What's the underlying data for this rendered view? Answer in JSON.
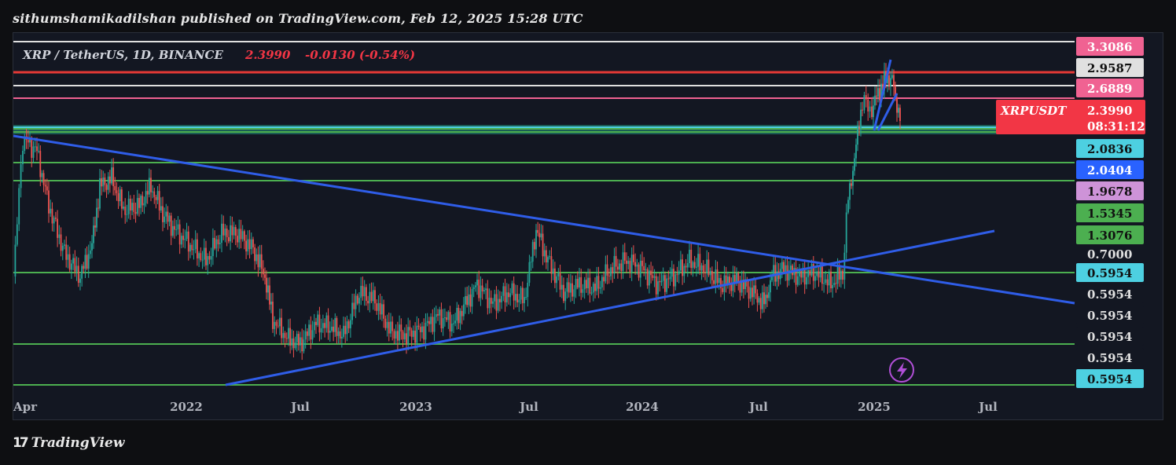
{
  "header": {
    "text": "sithumshamikadilshan published on TradingView.com, Feb 12, 2025 15:28 UTC"
  },
  "footer": {
    "brand": "TradingView",
    "logo_text": "17"
  },
  "legend": {
    "symbol": "XRP / TetherUS, 1D, BINANCE",
    "price": "2.3990",
    "change": "-0.0130 (-0.54%)",
    "price_color": "#f23645"
  },
  "current_price": {
    "ticker": "XRPUSDT",
    "value": "2.3990",
    "countdown": "08:31:12",
    "color": "#f23645"
  },
  "colors": {
    "background": "#131722",
    "trendline": "#2f5de8",
    "support_line": "#4caf50",
    "candle_up": "#26a69a",
    "candle_down": "#ef5350"
  },
  "price_labels": [
    {
      "value": "3.3086",
      "bg": "#f06292",
      "fg": "#ffffff"
    },
    {
      "value": "2.9587",
      "bg": "#e0e0e0",
      "fg": "#111111"
    },
    {
      "value": "2.6889",
      "bg": "#f06292",
      "fg": "#ffffff"
    },
    {
      "value": "2.0836",
      "bg": "#4dd0e1",
      "fg": "#111111"
    },
    {
      "value": "2.0404",
      "bg": "#2962ff",
      "fg": "#ffffff"
    },
    {
      "value": "1.9678",
      "bg": "#ce93d8",
      "fg": "#111111"
    },
    {
      "value": "1.5345",
      "bg": "#4caf50",
      "fg": "#111111"
    },
    {
      "value": "1.3076",
      "bg": "#4caf50",
      "fg": "#111111"
    },
    {
      "value": "0.7000",
      "bg": "#131722",
      "fg": "#e0e0e0"
    },
    {
      "value": "0.5954",
      "bg": "#4dd0e1",
      "fg": "#111111"
    },
    {
      "value": "0.5954",
      "bg": "#131722",
      "fg": "#e0e0e0"
    },
    {
      "value": "0.5954",
      "bg": "#131722",
      "fg": "#e0e0e0"
    },
    {
      "value": "0.5954",
      "bg": "#131722",
      "fg": "#e0e0e0"
    },
    {
      "value": "0.5954",
      "bg": "#131722",
      "fg": "#e0e0e0"
    },
    {
      "value": "0.5954",
      "bg": "#4dd0e1",
      "fg": "#111111"
    }
  ],
  "chart_data": {
    "type": "candlestick",
    "symbol": "XRP / TetherUS",
    "interval": "1D",
    "exchange": "BINANCE",
    "x_tick_labels": [
      "Apr",
      "2022",
      "Jul",
      "2023",
      "Jul",
      "2024",
      "Jul",
      "2025",
      "Jul"
    ],
    "horizontal_levels": [
      {
        "value": 3.3086,
        "color": "#e0e0e0",
        "label_color": "#f06292"
      },
      {
        "value": 2.9587,
        "color": "#e53935",
        "label_color": "#e0e0e0"
      },
      {
        "value": 2.6889,
        "color": "#e0e0e0",
        "label_color": "#f06292"
      },
      {
        "value": 2.4,
        "color": "#f06292"
      },
      {
        "value": 2.0836,
        "color": "#4dd0e1",
        "label_color": "#4dd0e1"
      },
      {
        "value": 2.0404,
        "color": "#4caf50",
        "label_color": "#2962ff"
      },
      {
        "value": 1.9678,
        "color": "#4caf50",
        "label_color": "#ce93d8"
      },
      {
        "value": 1.5345,
        "color": "#4caf50",
        "label_color": "#4caf50"
      },
      {
        "value": 1.3076,
        "color": "#4caf50",
        "label_color": "#4caf50"
      },
      {
        "value": 0.7,
        "color": "#4caf50"
      },
      {
        "value": 0.5954,
        "color": "#4caf50",
        "label_color": "#4dd0e1"
      }
    ],
    "trendlines": [
      "descending resistance",
      "ascending support",
      "rising channel"
    ],
    "grid": false,
    "legend_position": "top-left"
  }
}
